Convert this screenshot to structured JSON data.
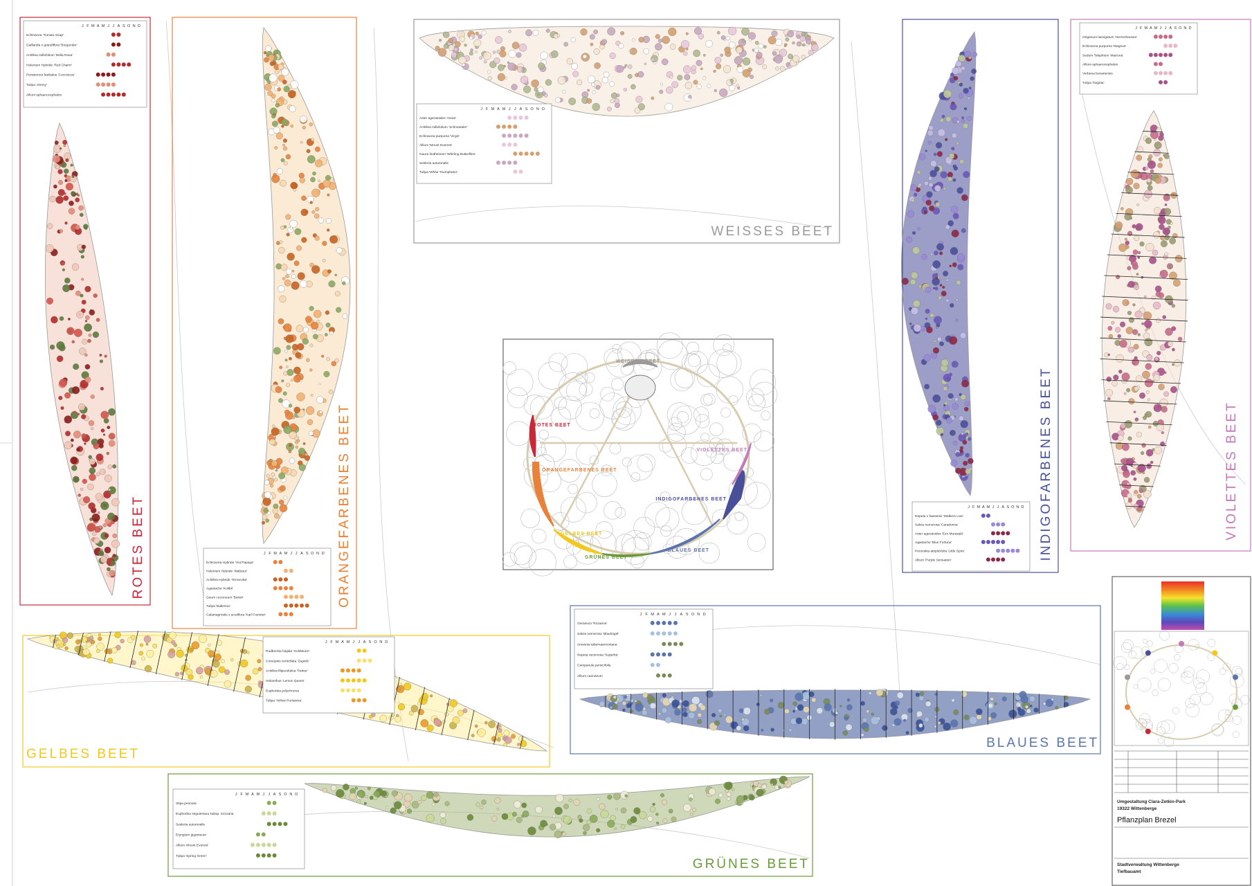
{
  "months": [
    "J",
    "F",
    "M",
    "A",
    "M",
    "J",
    "J",
    "A",
    "S",
    "O",
    "N",
    "D"
  ],
  "beds": [
    {
      "title": "ROTES BEET",
      "color": "#c8283a",
      "plants": [
        "Echinacea 'Tomato Soup'",
        "Gaillardia x grandiflora 'Burgunder'",
        "Achillea millefolium 'Bella Rosa'",
        "Helenium Hybride 'Red Charm'",
        "Penstemon barbatus 'Coccineus'",
        "Tulipa 'Jimmy'",
        "Allium sphaerocephalon"
      ]
    },
    {
      "title": "ORANGEFARBENES BEET",
      "color": "#e8823a",
      "plants": [
        "Echinacea Hybride 'Hot Papaya'",
        "Helenium Hybride 'Waltraut'",
        "Achillea Hybride 'Terracotta'",
        "Agastache 'Kolibri'",
        "Geum coccineum 'Borisii'",
        "Tulipa 'Ballerina'",
        "Calamagrostis x acutiflora 'Karl Foerster'"
      ]
    },
    {
      "title": "WEISSES BEET",
      "color": "#9a9a9a",
      "plants": [
        "Aster ageratoides 'Asran'",
        "Achillea millefolium 'Schneetaler'",
        "Echinacea purpurea 'Virgin'",
        "Allium 'Mount Everest'",
        "Gaura lindheimeri 'Whirling Butterflies'",
        "Sesleria autumnalis",
        "Tulipa 'White Triumphator'"
      ]
    },
    {
      "title": "INDIGOFARBENES BEET",
      "color": "#4a4f9a",
      "plants": [
        "Nepeta x faassenii 'Walkers Low'",
        "Salvia nemorosa 'Caradonna'",
        "Aster ageratoides 'Ezo Murasaki'",
        "Agastache 'Blue Fortune'",
        "Perovskia atriplicifolia 'Little Spire'",
        "Allium 'Purple Sensation'"
      ]
    },
    {
      "title": "VIOLETTES BEET",
      "color": "#c47ab8",
      "plants": [
        "Origanum laevigatum 'Herrenhausen'",
        "Echinacea purpurea 'Magnus'",
        "Sedum Telephium 'Matrona'",
        "Allium sphaerocephalon",
        "Verbena bonariensis",
        "Tulipa 'Negrita'"
      ]
    },
    {
      "title": "GELBES BEET",
      "color": "#f2c81e",
      "plants": [
        "Rudbeckia fulgida 'Goldsturm'",
        "Coreopsis verticillata 'Zagreb'",
        "Achillea filipendulina 'Parker'",
        "Helianthus 'Lemon Queen'",
        "Euphorbia polychroma",
        "Tulipa 'Yellow Purissima'"
      ]
    },
    {
      "title": "BLAUES BEET",
      "color": "#5a74b0",
      "plants": [
        "Geranium 'Rozanne'",
        "Salvia nemorosa 'Blauhügel'",
        "Amsonia tabernaemontana",
        "Nepeta racemosa 'Superba'",
        "Campanula persicifolia",
        "Allium caeruleum"
      ]
    },
    {
      "title": "GRÜNES BEET",
      "color": "#6a9a3a",
      "plants": [
        "Stipa pennata",
        "Euphorbia seguieriana subsp. niciciana",
        "Sesleria autumnalis",
        "Eryngium giganteum",
        "Allium 'Mount Everest'",
        "Tulipa 'Spring Green'"
      ]
    }
  ],
  "overview": {
    "labels": [
      "ROTES BEET",
      "ORANGEFARBENES BEET",
      "WEISSES BEET",
      "INDIGOFARBENES BEET",
      "VIOLETTES BEET",
      "GELBES BEET",
      "BLAUES BEET",
      "GRÜNES BEET"
    ]
  },
  "title_block": {
    "project": "Umgestaltung Clara-Zetkin-Park",
    "city": "19322 Wittenberge",
    "plan": "Pflanzplan Brezel",
    "client": "Stadtverwaltung Wittenberge",
    "department": "Tiefbauamt"
  }
}
